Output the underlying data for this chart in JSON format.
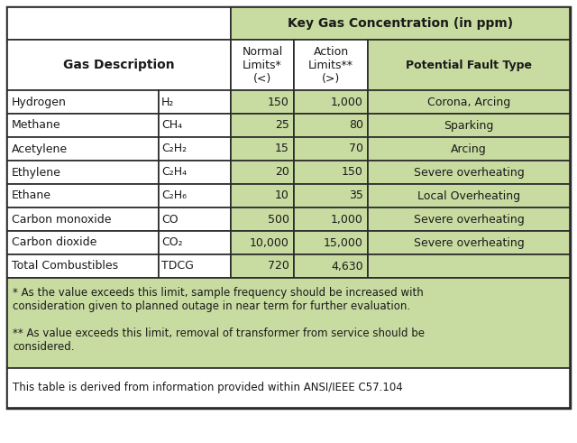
{
  "title": "Key Gas Concentration (in ppm)",
  "rows": [
    [
      "Hydrogen",
      "H₂",
      "150",
      "1,000",
      "Corona, Arcing"
    ],
    [
      "Methane",
      "CH₄",
      "25",
      "80",
      "Sparking"
    ],
    [
      "Acetylene",
      "C₂H₂",
      "15",
      "70",
      "Arcing"
    ],
    [
      "Ethylene",
      "C₂H₄",
      "20",
      "150",
      "Severe overheating"
    ],
    [
      "Ethane",
      "C₂H₆",
      "10",
      "35",
      "Local Overheating"
    ],
    [
      "Carbon monoxide",
      "CO",
      "500",
      "1,000",
      "Severe overheating"
    ],
    [
      "Carbon dioxide",
      "CO₂",
      "10,000",
      "15,000",
      "Severe overheating"
    ],
    [
      "Total Combustibles",
      "TDCG",
      "720",
      "4,630",
      ""
    ]
  ],
  "footnote1": "* As the value exceeds this limit, sample frequency should be increased with\nconsideration given to planned outage in near term for further evaluation.",
  "footnote2": "** As value exceeds this limit, removal of transformer from service should be\nconsidered.",
  "source_note": "This table is derived from information provided within ANSI/IEEE C57.104",
  "bg_green": "#c8dba0",
  "bg_white": "#ffffff",
  "border_color": "#2a2a2a",
  "text_color": "#1a1a1a",
  "outer_lw": 2.5,
  "inner_lw": 1.2
}
